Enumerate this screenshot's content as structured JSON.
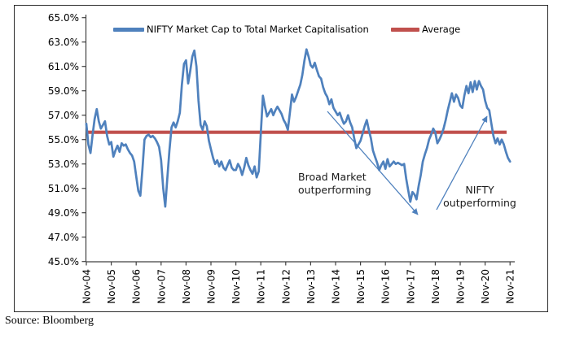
{
  "source_note": "Source: Bloomberg",
  "legend": {
    "series1_label": "NIFTY Market Cap to Total Market Capitalisation",
    "series2_label": "Average"
  },
  "annotations": {
    "broad_market_line1": "Broad Market",
    "broad_market_line2": "outperforming",
    "nifty_line1": "NIFTY",
    "nifty_line2": "outperforming"
  },
  "colors": {
    "series_blue": "#4F81BD",
    "average_red": "#C0504D",
    "axis_gray": "#404040",
    "text_black": "#000000"
  },
  "chart_data": {
    "type": "line",
    "title": "",
    "xlabel": "",
    "ylabel": "",
    "x_start": "Nov-04",
    "x_end": "Nov-21",
    "x_frequency": "monthly",
    "x_tick_labels": [
      "Nov-04",
      "Nov-05",
      "Nov-06",
      "Nov-07",
      "Nov-08",
      "Nov-09",
      "Nov-10",
      "Nov-11",
      "Nov-12",
      "Nov-13",
      "Nov-14",
      "Nov-15",
      "Nov-16",
      "Nov-17",
      "Nov-18",
      "Nov-19",
      "Nov-20",
      "Nov-21"
    ],
    "y_tick_labels": [
      "65.0%",
      "63.0%",
      "61.0%",
      "59.0%",
      "57.0%",
      "55.0%",
      "53.0%",
      "51.0%",
      "49.0%",
      "47.0%",
      "45.0%"
    ],
    "ylim": [
      45.0,
      65.0
    ],
    "y_tick_step": 2.0,
    "grid": false,
    "legend_position": "top",
    "average_value_pct": 55.6,
    "series": [
      {
        "name": "NIFTY Market Cap to Total Market Capitalisation",
        "unit": "percent",
        "monthly_values_pct": [
          56.3,
          54.6,
          53.9,
          55.4,
          56.7,
          57.5,
          56.5,
          55.9,
          56.2,
          56.5,
          55.3,
          54.6,
          54.8,
          53.6,
          54.1,
          54.5,
          54.0,
          54.7,
          54.5,
          54.6,
          54.2,
          53.9,
          53.7,
          53.2,
          52.0,
          50.8,
          50.4,
          52.6,
          55.0,
          55.3,
          55.4,
          55.2,
          55.3,
          55.1,
          54.8,
          54.4,
          53.3,
          51.0,
          49.5,
          51.9,
          54.1,
          56.0,
          56.4,
          56.0,
          56.5,
          57.2,
          59.5,
          61.2,
          61.5,
          59.6,
          60.6,
          61.8,
          62.3,
          61.0,
          58.2,
          56.2,
          55.8,
          56.5,
          56.1,
          54.9,
          54.2,
          53.5,
          53.0,
          53.3,
          52.8,
          53.2,
          52.7,
          52.5,
          52.9,
          53.3,
          52.7,
          52.5,
          52.5,
          53.0,
          52.7,
          52.1,
          52.7,
          53.5,
          52.9,
          52.5,
          52.2,
          52.8,
          51.9,
          52.4,
          55.5,
          58.6,
          57.7,
          56.9,
          57.2,
          57.5,
          57.0,
          57.4,
          57.7,
          57.4,
          57.1,
          56.6,
          56.3,
          55.8,
          57.2,
          58.7,
          58.1,
          58.5,
          59.0,
          59.5,
          60.3,
          61.5,
          62.4,
          61.8,
          61.1,
          60.9,
          61.3,
          60.7,
          60.2,
          60.0,
          59.3,
          58.8,
          58.5,
          57.9,
          58.3,
          57.6,
          57.3,
          57.0,
          57.2,
          56.7,
          56.3,
          56.5,
          57.0,
          56.4,
          56.0,
          55.1,
          54.3,
          54.6,
          54.9,
          55.5,
          56.1,
          56.6,
          55.8,
          55.1,
          54.1,
          53.6,
          53.1,
          52.5,
          52.9,
          53.2,
          52.6,
          53.4,
          52.8,
          53.0,
          53.2,
          53.0,
          53.1,
          53.0,
          52.9,
          53.0,
          51.8,
          50.8,
          49.9,
          50.7,
          50.5,
          50.1,
          51.2,
          52.1,
          53.2,
          53.8,
          54.3,
          55.0,
          55.4,
          55.9,
          55.6,
          54.7,
          55.0,
          55.4,
          55.9,
          56.6,
          57.4,
          58.1,
          58.8,
          58.1,
          58.7,
          58.4,
          57.8,
          57.6,
          58.6,
          59.4,
          58.8,
          59.7,
          58.9,
          59.8,
          59.1,
          59.8,
          59.4,
          59.1,
          58.2,
          57.6,
          57.4,
          56.3,
          55.3,
          54.7,
          55.1,
          54.6,
          55.0,
          54.6,
          54.0,
          53.5,
          53.2
        ]
      },
      {
        "name": "Average",
        "unit": "percent",
        "value_pct": 55.6
      }
    ]
  }
}
